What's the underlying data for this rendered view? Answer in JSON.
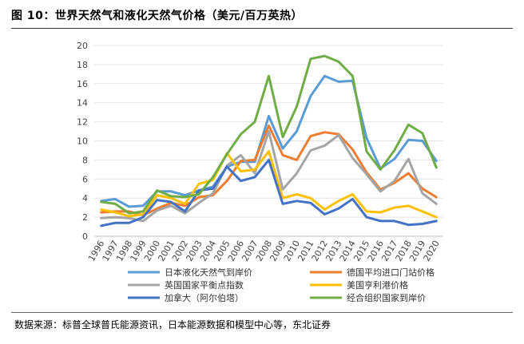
{
  "header": {
    "title": "图 10：世界天然气和液化天然气价格（美元/百万英热）"
  },
  "footer": {
    "source": "数据来源：标普全球普氏能源资讯，日本能源数据和模型中心等，东北证券"
  },
  "chart_data": {
    "type": "line",
    "title": "",
    "xlabel": "",
    "ylabel": "",
    "ylim": [
      0,
      20
    ],
    "yticks": [
      0,
      2,
      4,
      6,
      8,
      10,
      12,
      14,
      16,
      18,
      20
    ],
    "grid": true,
    "legend_position": "bottom",
    "categories": [
      "1996",
      "1997",
      "1998",
      "1999",
      "2000",
      "2001",
      "2002",
      "2003",
      "2004",
      "2005",
      "2006",
      "2007",
      "2008",
      "2009",
      "2010",
      "2011",
      "2012",
      "2013",
      "2014",
      "2015",
      "2016",
      "2017",
      "2018",
      "2019",
      "2020"
    ],
    "series": [
      {
        "name": "日本液化天然气到岸价",
        "color": "#5b9bd5",
        "values": [
          3.7,
          3.9,
          3.1,
          3.2,
          4.7,
          4.7,
          4.3,
          4.8,
          5.2,
          7.3,
          7.8,
          7.8,
          12.6,
          9.2,
          11.0,
          14.7,
          16.8,
          16.2,
          16.3,
          10.3,
          7.1,
          8.1,
          10.1,
          10.0,
          7.9
        ]
      },
      {
        "name": "德国平均进口门站价格",
        "color": "#ed7d31",
        "values": [
          2.5,
          2.6,
          2.6,
          2.2,
          2.9,
          3.5,
          3.2,
          4.1,
          4.3,
          5.8,
          7.9,
          8.0,
          11.6,
          8.5,
          8.0,
          10.5,
          10.9,
          10.7,
          9.1,
          6.7,
          4.9,
          5.6,
          6.6,
          5.0,
          4.1
        ]
      },
      {
        "name": "英国国家平衡点指数",
        "color": "#a5a5a5",
        "values": [
          1.9,
          2.0,
          1.9,
          1.6,
          2.7,
          3.2,
          2.4,
          3.5,
          4.5,
          7.4,
          8.5,
          6.6,
          11.0,
          4.9,
          6.6,
          9.0,
          9.5,
          10.6,
          8.2,
          6.5,
          4.7,
          5.8,
          8.1,
          4.5,
          3.4
        ]
      },
      {
        "name": "美国亨利港价格",
        "color": "#ffc000",
        "values": [
          2.8,
          2.5,
          2.1,
          2.3,
          4.3,
          4.0,
          3.4,
          5.5,
          5.9,
          8.7,
          6.8,
          7.0,
          8.9,
          4.0,
          4.4,
          4.0,
          2.8,
          3.7,
          4.4,
          2.6,
          2.5,
          3.0,
          3.2,
          2.6,
          2.0
        ]
      },
      {
        "name": "加拿大（阿尔伯塔）",
        "color": "#4472c4",
        "values": [
          1.1,
          1.4,
          1.4,
          2.0,
          3.8,
          3.6,
          2.6,
          4.8,
          5.0,
          7.3,
          5.8,
          6.2,
          8.0,
          3.4,
          3.7,
          3.5,
          2.3,
          2.9,
          3.9,
          2.0,
          1.6,
          1.6,
          1.2,
          1.3,
          1.6
        ]
      },
      {
        "name": "经合组织国家到岸价",
        "color": "#70ad47",
        "values": [
          3.6,
          3.4,
          2.4,
          2.6,
          4.8,
          4.2,
          4.1,
          4.4,
          6.2,
          8.6,
          10.7,
          12.0,
          16.8,
          10.4,
          13.6,
          18.6,
          18.9,
          18.3,
          16.8,
          8.9,
          7.0,
          9.0,
          11.7,
          10.8,
          7.2
        ]
      }
    ]
  }
}
